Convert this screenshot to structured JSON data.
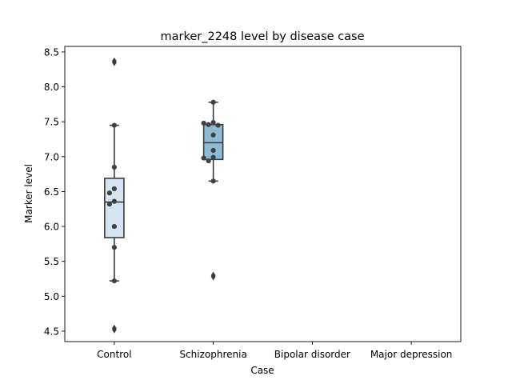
{
  "chart_data": {
    "type": "box",
    "title": "marker_2248 level by disease case",
    "xlabel": "Case",
    "ylabel": "Marker level",
    "categories": [
      "Control",
      "Schizophrenia",
      "Bipolar disorder",
      "Major depression"
    ],
    "ylim": [
      4.35,
      8.58
    ],
    "yticks": [
      "4.5",
      "5.0",
      "5.5",
      "6.0",
      "6.5",
      "7.0",
      "7.5",
      "8.0",
      "8.5"
    ],
    "box_colors": [
      "#d6e4f1",
      "#8dbbd6"
    ],
    "boxes": [
      {
        "category": "Control",
        "q1": 5.84,
        "median": 6.35,
        "q3": 6.69,
        "whisker_low": 5.22,
        "whisker_high": 7.45,
        "outliers": [
          8.37,
          8.35,
          4.54,
          4.52
        ],
        "points": [
          7.45,
          6.85,
          6.54,
          6.48,
          6.36,
          6.32,
          6.0,
          5.7,
          5.22
        ]
      },
      {
        "category": "Schizophrenia",
        "q1": 6.96,
        "median": 7.2,
        "q3": 7.46,
        "whisker_low": 6.65,
        "whisker_high": 7.78,
        "outliers": [
          5.3,
          5.28
        ],
        "points": [
          7.78,
          7.49,
          7.48,
          7.46,
          7.45,
          7.31,
          7.09,
          6.99,
          6.98,
          6.94,
          6.65
        ]
      }
    ]
  }
}
